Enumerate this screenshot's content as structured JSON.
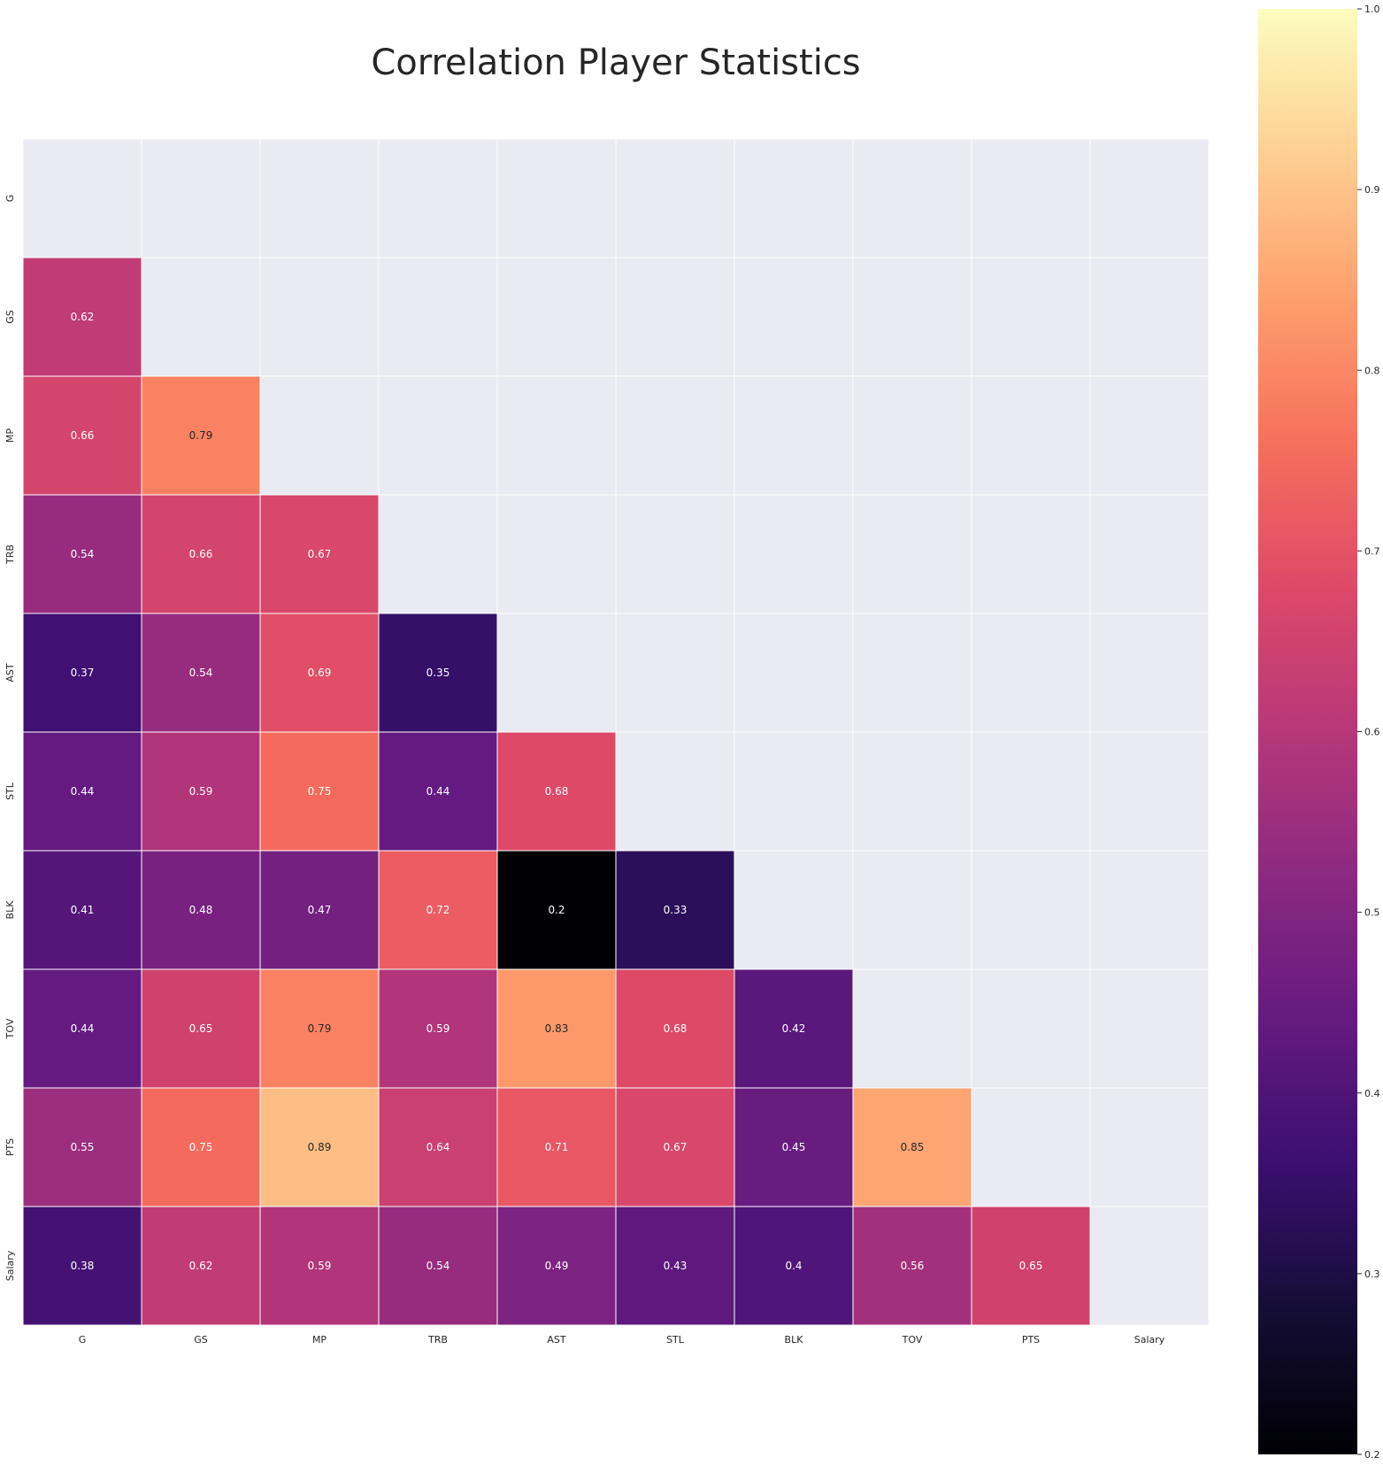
{
  "chart_data": {
    "type": "heatmap",
    "title": "Correlation Player Statistics",
    "x_labels": [
      "G",
      "GS",
      "MP",
      "TRB",
      "AST",
      "STL",
      "BLK",
      "TOV",
      "PTS",
      "Salary"
    ],
    "y_labels": [
      "G",
      "GS",
      "MP",
      "TRB",
      "AST",
      "STL",
      "BLK",
      "TOV",
      "PTS",
      "Salary"
    ],
    "mask": "upper-triangle-including-diagonal",
    "masked_color": "#eaeaf2",
    "colormap": "magma",
    "values": [
      [
        null,
        null,
        null,
        null,
        null,
        null,
        null,
        null,
        null,
        null
      ],
      [
        0.62,
        null,
        null,
        null,
        null,
        null,
        null,
        null,
        null,
        null
      ],
      [
        0.66,
        0.79,
        null,
        null,
        null,
        null,
        null,
        null,
        null,
        null
      ],
      [
        0.54,
        0.66,
        0.67,
        null,
        null,
        null,
        null,
        null,
        null,
        null
      ],
      [
        0.37,
        0.54,
        0.69,
        0.35,
        null,
        null,
        null,
        null,
        null,
        null
      ],
      [
        0.44,
        0.59,
        0.75,
        0.44,
        0.68,
        null,
        null,
        null,
        null,
        null
      ],
      [
        0.41,
        0.48,
        0.47,
        0.72,
        0.2,
        0.33,
        null,
        null,
        null,
        null
      ],
      [
        0.44,
        0.65,
        0.79,
        0.59,
        0.83,
        0.68,
        0.42,
        null,
        null,
        null
      ],
      [
        0.55,
        0.75,
        0.89,
        0.64,
        0.71,
        0.67,
        0.45,
        0.85,
        null,
        null
      ],
      [
        0.38,
        0.62,
        0.59,
        0.54,
        0.49,
        0.43,
        0.4,
        0.56,
        0.65,
        null
      ]
    ],
    "labels": [
      [
        null,
        null,
        null,
        null,
        null,
        null,
        null,
        null,
        null,
        null
      ],
      [
        "0.62",
        null,
        null,
        null,
        null,
        null,
        null,
        null,
        null,
        null
      ],
      [
        "0.66",
        "0.79",
        null,
        null,
        null,
        null,
        null,
        null,
        null,
        null
      ],
      [
        "0.54",
        "0.66",
        "0.67",
        null,
        null,
        null,
        null,
        null,
        null,
        null
      ],
      [
        "0.37",
        "0.54",
        "0.69",
        "0.35",
        null,
        null,
        null,
        null,
        null,
        null
      ],
      [
        "0.44",
        "0.59",
        "0.75",
        "0.44",
        "0.68",
        null,
        null,
        null,
        null,
        null
      ],
      [
        "0.41",
        "0.48",
        "0.47",
        "0.72",
        "0.2",
        "0.33",
        null,
        null,
        null,
        null
      ],
      [
        "0.44",
        "0.65",
        "0.79",
        "0.59",
        "0.83",
        "0.68",
        "0.42",
        null,
        null,
        null
      ],
      [
        "0.55",
        "0.75",
        "0.89",
        "0.64",
        "0.71",
        "0.67",
        "0.45",
        "0.85",
        null,
        null
      ],
      [
        "0.38",
        "0.62",
        "0.59",
        "0.54",
        "0.49",
        "0.43",
        "0.4",
        "0.56",
        "0.65",
        null
      ]
    ],
    "colorbar": {
      "range": [
        0.2,
        1.0
      ],
      "ticks": [
        0.2,
        0.3,
        0.4,
        0.5,
        0.6,
        0.7,
        0.8,
        0.9,
        1.0
      ],
      "tick_labels": [
        "0.2",
        "0.3",
        "0.4",
        "0.5",
        "0.6",
        "0.7",
        "0.8",
        "0.9",
        "1.0"
      ]
    },
    "grid": true
  }
}
